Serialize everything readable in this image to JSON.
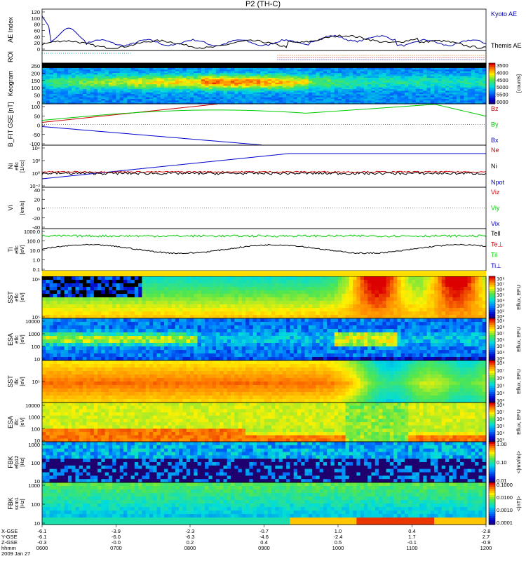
{
  "title": "P2 (TH-C)",
  "colors": {
    "kyoto": "#0000aa",
    "themis": "#000000",
    "red": "#cc0000",
    "green": "#00cc00",
    "blue": "#0000cc",
    "yellow": "#ffdd00"
  },
  "chart_data": [
    {
      "id": "ae",
      "type": "line",
      "ylabel": "AE Index",
      "ylim": [
        0,
        120
      ],
      "yticks": [
        "0",
        "20",
        "40",
        "60",
        "80",
        "100",
        "120"
      ],
      "legend": [
        {
          "label": "Kyoto AE",
          "color": "#0000aa"
        },
        {
          "label": "Themis AE",
          "color": "#000000"
        }
      ]
    },
    {
      "id": "roi",
      "type": "line",
      "ylabel": "ROI",
      "legend": []
    },
    {
      "id": "keogram",
      "type": "heatmap",
      "ylabel": "Keogram",
      "ylim": [
        0,
        250
      ],
      "yticks": [
        "0",
        "50",
        "100",
        "150",
        "200",
        "250"
      ],
      "colorbar": {
        "label": "[counts]",
        "ticks": [
          "3500",
          "4000",
          "4500",
          "5000",
          "5500",
          "6000"
        ]
      }
    },
    {
      "id": "bfit",
      "type": "line",
      "ylabel": "B_FIT GSE [nT]",
      "ylim": [
        -100,
        100
      ],
      "yticks": [
        "-100",
        "-50",
        "0",
        "50",
        "100"
      ],
      "legend": [
        {
          "label": "Bz",
          "color": "#cc0000"
        },
        {
          "label": "By",
          "color": "#00cc00"
        },
        {
          "label": "Bx",
          "color": "#0000cc"
        }
      ]
    },
    {
      "id": "ni",
      "type": "line",
      "ylabel": "Ni",
      "ylabel2": "[1/cc]",
      "ylabel3": "eflc",
      "yticks": [
        "10⁻²",
        "10⁰",
        "10²",
        "10⁴"
      ],
      "legend": [
        {
          "label": "Ne",
          "color": "#cc0000"
        },
        {
          "label": "Ni",
          "color": "#000000"
        },
        {
          "label": "Npot",
          "color": "#0000cc"
        }
      ]
    },
    {
      "id": "vi",
      "type": "line",
      "ylabel": "Vi",
      "ylabel2": "[km/s]",
      "ylim": [
        -40,
        40
      ],
      "yticks": [
        "-40",
        "-20",
        "0",
        "20",
        "40"
      ],
      "legend": [
        {
          "label": "Viz",
          "color": "#cc0000"
        },
        {
          "label": "Viy",
          "color": "#00cc00"
        },
        {
          "label": "Vix",
          "color": "#0000cc"
        }
      ]
    },
    {
      "id": "ti",
      "type": "line",
      "ylabel": "Ti",
      "ylabel2": "[eV]",
      "ylabel3": "eflc",
      "yticks": [
        "0.1",
        "1.0",
        "10.0",
        "100.0",
        "1000.0"
      ],
      "legend": [
        {
          "label": "Tell",
          "color": "#000000"
        },
        {
          "label": "Te⊥",
          "color": "#cc0000"
        },
        {
          "label": "Til",
          "color": "#00cc00"
        },
        {
          "label": "Ti⊥",
          "color": "#0000cc"
        }
      ]
    },
    {
      "id": "sst_e",
      "type": "heatmap",
      "ylabel": "SST",
      "ylabel2": "[eV]",
      "ylabel3": "eflc",
      "yticks": [
        "10⁵",
        "10⁶"
      ],
      "colorbar": {
        "label": "Eflux, EFU",
        "ticks": [
          "10⁸",
          "10⁷",
          "10⁶",
          "10⁵",
          "10⁴",
          "10³",
          "10²",
          "10¹"
        ]
      }
    },
    {
      "id": "esa_e",
      "type": "heatmap",
      "ylabel": "ESA",
      "ylabel2": "[eV]",
      "ylabel3": "eflc",
      "yticks": [
        "10",
        "100",
        "1000",
        "10000"
      ],
      "colorbar": {
        "label": "Eflux, EFU",
        "ticks": [
          "10⁹",
          "10⁸",
          "10⁷",
          "10⁶",
          "10⁵",
          "10⁴",
          "10³"
        ]
      }
    },
    {
      "id": "sst_i",
      "type": "heatmap",
      "ylabel": "SST",
      "ylabel2": "[eV]",
      "ylabel3": "iflc",
      "yticks": [
        "10⁵"
      ],
      "colorbar": {
        "label": "Eflux, EFU",
        "ticks": [
          "10⁸",
          "10⁷",
          "10⁶",
          "10⁵",
          "10⁴",
          "10³"
        ]
      }
    },
    {
      "id": "esa_i",
      "type": "heatmap",
      "ylabel": "ESA",
      "ylabel2": "[eV]",
      "ylabel3": "iflc",
      "yticks": [
        "10",
        "100",
        "1000",
        "10000"
      ],
      "colorbar": {
        "label": "Eflux, EFU",
        "ticks": [
          "10⁸",
          "10⁷",
          "10⁶",
          "10⁵",
          "10⁴",
          "10³"
        ]
      }
    },
    {
      "id": "fbk_e",
      "type": "heatmap",
      "ylabel": "FBK",
      "ylabel2": "[Hz]",
      "ylabel3": "efp12",
      "yticks": [
        "10",
        "100",
        "1000"
      ],
      "colorbar": {
        "label": "<|mV/m|>",
        "ticks": [
          "1.00",
          "0.10",
          "0.01"
        ]
      }
    },
    {
      "id": "fbk_b",
      "type": "heatmap",
      "ylabel": "FBK",
      "ylabel2": "[Hz]",
      "ylabel3": "scm1",
      "yticks": [
        "10",
        "100",
        "1000"
      ],
      "colorbar": {
        "label": "<|nT|>",
        "ticks": [
          "0.1000",
          "0.0100",
          "0.0010",
          "0.0001"
        ]
      }
    }
  ],
  "xaxis": {
    "row_labels": [
      "X-GSE",
      "Y-GSE",
      "Z-GSE",
      "hhmm",
      "2009 Jan 27"
    ],
    "ticks": [
      {
        "x": "-6.1",
        "y": "-6.1",
        "z": "-0.3",
        "t": "0600"
      },
      {
        "x": "-3.9",
        "y": "-6.0",
        "z": "-0.0",
        "t": "0700"
      },
      {
        "x": "-2.3",
        "y": "-6.3",
        "z": "0.2",
        "t": "0800"
      },
      {
        "x": "-0.7",
        "y": "-4.6",
        "z": "0.4",
        "t": "0900"
      },
      {
        "x": "1.0",
        "y": "-2.4",
        "z": "0.5",
        "t": "1000"
      },
      {
        "x": "0.4",
        "y": "1.7",
        "z": "-0.1",
        "t": "1100"
      },
      {
        "x": "-2.8",
        "y": "2.7",
        "z": "-0.9",
        "t": "1200"
      }
    ]
  }
}
